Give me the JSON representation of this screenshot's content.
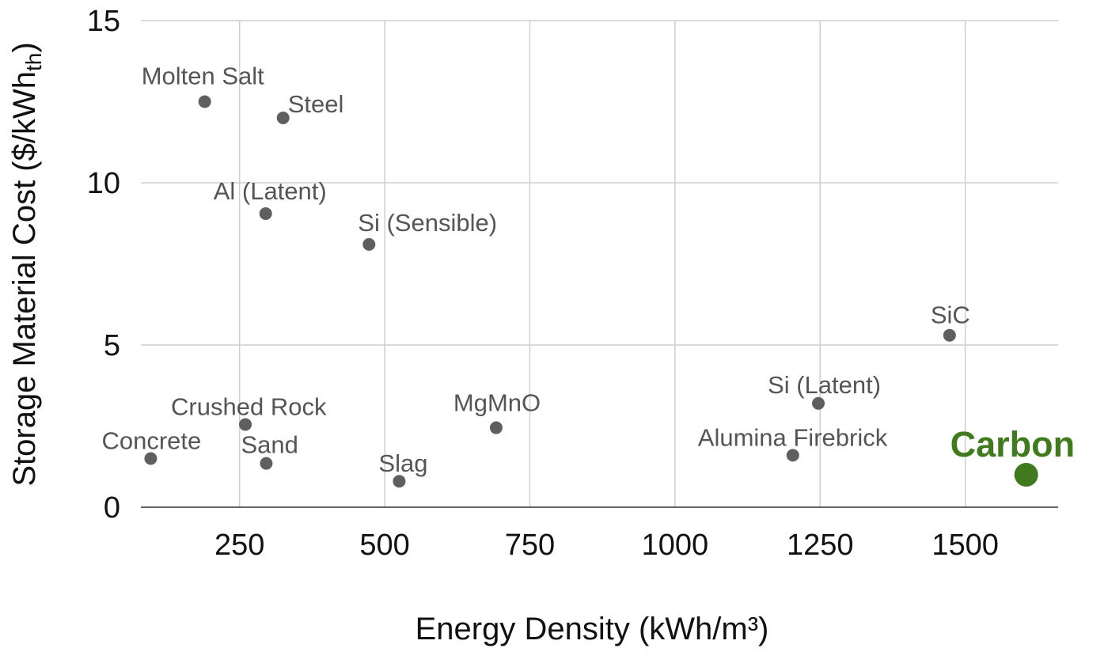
{
  "chart_data": {
    "type": "scatter",
    "xlabel": "Energy Density (kWh/m³)",
    "ylabel_main": "Storage Material Cost ($/kWh",
    "ylabel_sub": "th",
    "ylabel_close": ")",
    "xlim": [
      80,
      1660
    ],
    "ylim": [
      0,
      15
    ],
    "xticks": [
      250,
      500,
      750,
      1000,
      1250,
      1500
    ],
    "yticks": [
      0,
      5,
      10,
      15
    ],
    "grid": true,
    "points": [
      {
        "label": "Molten Salt",
        "x": 190,
        "y": 12.5
      },
      {
        "label": "Steel",
        "x": 325,
        "y": 12.0
      },
      {
        "label": "Al (Latent)",
        "x": 295,
        "y": 9.05
      },
      {
        "label": "Si (Sensible)",
        "x": 473,
        "y": 8.1
      },
      {
        "label": "SiC",
        "x": 1473,
        "y": 5.3
      },
      {
        "label": "Si (Latent)",
        "x": 1247,
        "y": 3.2
      },
      {
        "label": "Crushed Rock",
        "x": 260,
        "y": 2.55
      },
      {
        "label": "MgMnO",
        "x": 692,
        "y": 2.45
      },
      {
        "label": "Alumina Firebrick",
        "x": 1203,
        "y": 1.6
      },
      {
        "label": "Concrete",
        "x": 97,
        "y": 1.5
      },
      {
        "label": "Sand",
        "x": 296,
        "y": 1.35
      },
      {
        "label": "Slag",
        "x": 525,
        "y": 0.8
      },
      {
        "label": "Carbon",
        "x": 1605,
        "y": 1.0,
        "highlight": true
      }
    ],
    "colors": {
      "point": "#5f5f5f",
      "highlight": "#3f7a1e"
    }
  }
}
